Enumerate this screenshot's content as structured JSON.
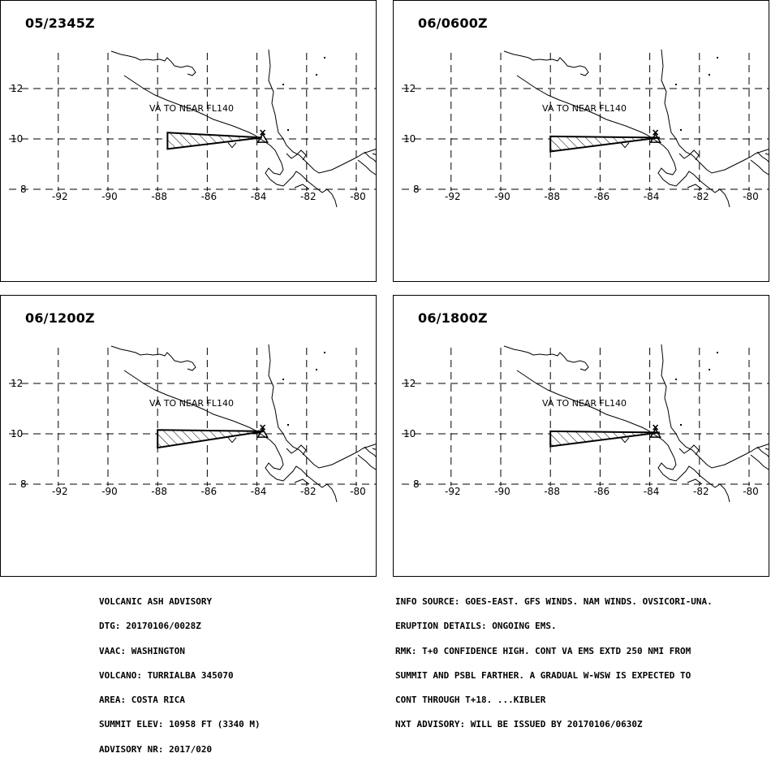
{
  "panels": [
    {
      "title": "05/2345Z",
      "label": "VA TO NEAR FL140",
      "poly": [
        [
          -87.6,
          10.25
        ],
        [
          -83.8,
          10.05
        ],
        [
          -87.6,
          9.6
        ]
      ]
    },
    {
      "title": "06/0600Z",
      "label": "VA TO NEAR FL140",
      "poly": [
        [
          -88.0,
          10.1
        ],
        [
          -83.6,
          10.05
        ],
        [
          -88.0,
          9.5
        ]
      ]
    },
    {
      "title": "06/1200Z",
      "label": "VA TO NEAR FL140",
      "poly": [
        [
          -88.0,
          10.15
        ],
        [
          -83.7,
          10.1
        ],
        [
          -88.0,
          9.45
        ]
      ]
    },
    {
      "title": "06/1800Z",
      "label": "VA TO NEAR FL140",
      "poly": [
        [
          -88.0,
          10.1
        ],
        [
          -83.6,
          10.05
        ],
        [
          -88.0,
          9.5
        ]
      ]
    }
  ],
  "axis": {
    "lon_ticks": [
      "-92",
      "-90",
      "-88",
      "-86",
      "-84",
      "-82",
      "-80"
    ],
    "lat_ticks": [
      "12",
      "10",
      "8"
    ]
  },
  "advisory_left": [
    "VOLCANIC ASH ADVISORY",
    "DTG: 20170106/0028Z",
    "VAAC: WASHINGTON",
    "VOLCANO: TURRIALBA 345070",
    "AREA: COSTA RICA",
    "SUMMIT ELEV: 10958 FT (3340 M)",
    "ADVISORY NR: 2017/020"
  ],
  "advisory_right": [
    "INFO SOURCE: GOES-EAST. GFS WINDS. NAM WINDS. OVSICORI-UNA.",
    "ERUPTION DETAILS: ONGOING EMS.",
    "RMK: T+0 CONFIDENCE HIGH. CONT VA EMS EXTD 250 NMI FROM",
    "SUMMIT AND PSBL FARTHER. A GRADUAL W-WSW IS EXPECTED TO",
    "CONT THROUGH T+18. ...KIBLER",
    "NXT ADVISORY: WILL BE ISSUED BY 20170106/0630Z"
  ]
}
